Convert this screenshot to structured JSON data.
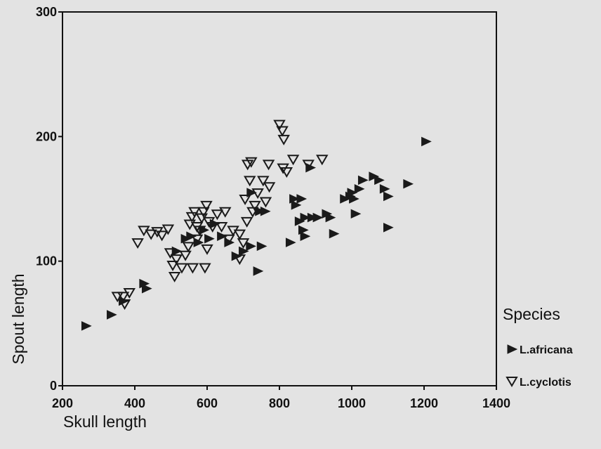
{
  "chart_data": {
    "type": "scatter",
    "xlabel": "Skull length",
    "ylabel": "Spout length",
    "xlim": [
      200,
      1400
    ],
    "ylim": [
      0,
      300
    ],
    "xticks": [
      200,
      400,
      600,
      800,
      1000,
      1200,
      1400
    ],
    "yticks": [
      0,
      100,
      200,
      300
    ],
    "grid": false,
    "legend": {
      "title": "Species",
      "position": "right"
    },
    "series": [
      {
        "name": "L.africana",
        "marker": "filled-right-triangle",
        "color": "#1a1a1a",
        "points": [
          [
            265,
            48
          ],
          [
            335,
            57
          ],
          [
            368,
            68
          ],
          [
            425,
            82
          ],
          [
            432,
            78
          ],
          [
            515,
            108
          ],
          [
            540,
            118
          ],
          [
            555,
            120
          ],
          [
            575,
            115
          ],
          [
            590,
            125
          ],
          [
            605,
            118
          ],
          [
            620,
            130
          ],
          [
            640,
            120
          ],
          [
            660,
            115
          ],
          [
            680,
            104
          ],
          [
            700,
            108
          ],
          [
            720,
            112
          ],
          [
            740,
            92
          ],
          [
            750,
            112
          ],
          [
            722,
            155
          ],
          [
            745,
            140
          ],
          [
            760,
            140
          ],
          [
            830,
            115
          ],
          [
            840,
            150
          ],
          [
            845,
            145
          ],
          [
            860,
            150
          ],
          [
            870,
            135
          ],
          [
            855,
            132
          ],
          [
            885,
            175
          ],
          [
            890,
            135
          ],
          [
            905,
            135
          ],
          [
            930,
            138
          ],
          [
            940,
            135
          ],
          [
            950,
            122
          ],
          [
            870,
            120
          ],
          [
            980,
            150
          ],
          [
            995,
            152
          ],
          [
            1005,
            150
          ],
          [
            1010,
            138
          ],
          [
            1020,
            158
          ],
          [
            1030,
            165
          ],
          [
            1060,
            168
          ],
          [
            1075,
            165
          ],
          [
            1090,
            158
          ],
          [
            1100,
            152
          ],
          [
            1100,
            127
          ],
          [
            1155,
            162
          ],
          [
            1205,
            196
          ],
          [
            1000,
            155
          ],
          [
            865,
            125
          ]
        ]
      },
      {
        "name": "L.cyclotis",
        "marker": "open-down-triangle",
        "color": "#1a1a1a",
        "points": [
          [
            352,
            72
          ],
          [
            368,
            72
          ],
          [
            372,
            66
          ],
          [
            385,
            75
          ],
          [
            408,
            115
          ],
          [
            425,
            125
          ],
          [
            445,
            122
          ],
          [
            462,
            124
          ],
          [
            475,
            121
          ],
          [
            492,
            126
          ],
          [
            498,
            107
          ],
          [
            505,
            97
          ],
          [
            510,
            88
          ],
          [
            515,
            102
          ],
          [
            530,
            95
          ],
          [
            540,
            105
          ],
          [
            548,
            112
          ],
          [
            552,
            130
          ],
          [
            558,
            136
          ],
          [
            565,
            140
          ],
          [
            572,
            128
          ],
          [
            580,
            125
          ],
          [
            585,
            135
          ],
          [
            590,
            140
          ],
          [
            594,
            95
          ],
          [
            598,
            145
          ],
          [
            605,
            132
          ],
          [
            615,
            128
          ],
          [
            628,
            138
          ],
          [
            640,
            128
          ],
          [
            650,
            140
          ],
          [
            660,
            118
          ],
          [
            672,
            125
          ],
          [
            690,
            122
          ],
          [
            700,
            115
          ],
          [
            705,
            150
          ],
          [
            710,
            132
          ],
          [
            712,
            178
          ],
          [
            718,
            165
          ],
          [
            722,
            180
          ],
          [
            726,
            140
          ],
          [
            732,
            145
          ],
          [
            740,
            155
          ],
          [
            755,
            165
          ],
          [
            762,
            148
          ],
          [
            770,
            178
          ],
          [
            772,
            160
          ],
          [
            800,
            210
          ],
          [
            808,
            205
          ],
          [
            812,
            198
          ],
          [
            810,
            175
          ],
          [
            820,
            172
          ],
          [
            838,
            182
          ],
          [
            880,
            178
          ],
          [
            918,
            182
          ],
          [
            572,
            118
          ],
          [
            560,
            95
          ],
          [
            600,
            110
          ],
          [
            690,
            102
          ]
        ]
      }
    ]
  }
}
